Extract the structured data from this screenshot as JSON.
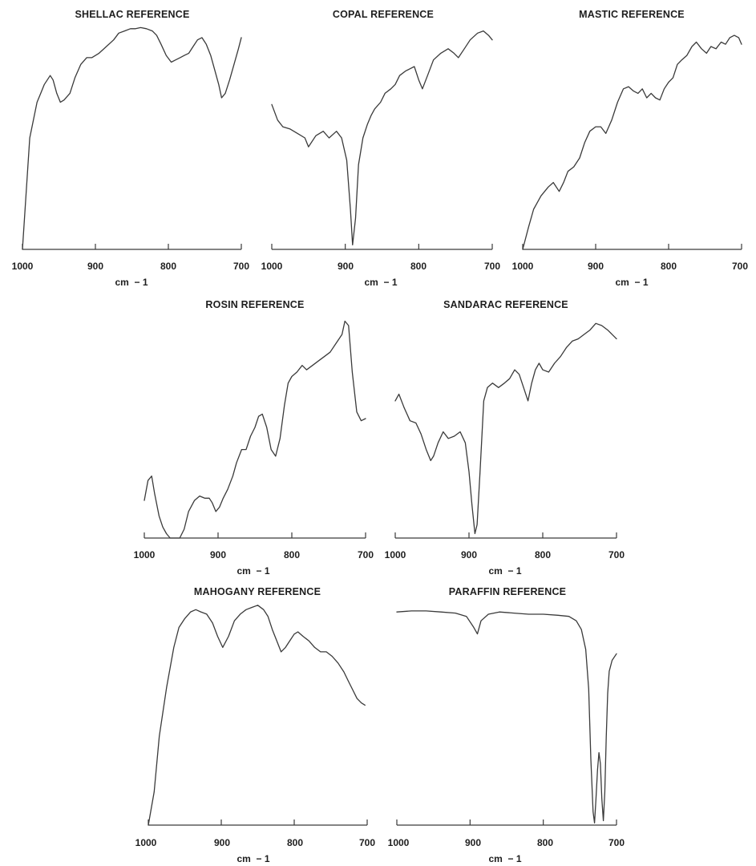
{
  "chart_data": [
    {
      "type": "line",
      "title": "SHELLAC REFERENCE",
      "xlabel": "cm  − 1",
      "ylabel": "",
      "xlim": [
        1000,
        700
      ],
      "ylim": [
        0,
        100
      ],
      "x_ticks": [
        "1000",
        "900",
        "800",
        "700"
      ],
      "series": [
        {
          "x": [
            1000,
            990,
            980,
            975,
            970,
            962,
            958,
            953,
            948,
            943,
            935,
            928,
            920,
            912,
            905,
            895,
            885,
            875,
            868,
            860,
            852,
            845,
            838,
            830,
            822,
            816,
            810,
            803,
            796,
            790,
            784,
            778,
            772,
            766,
            760,
            754,
            748,
            742,
            736,
            731,
            727,
            722,
            716,
            710,
            704,
            700
          ],
          "y": [
            0,
            50,
            66,
            70,
            74,
            78,
            76,
            70,
            66,
            67,
            70,
            77,
            83,
            86,
            86,
            88,
            91,
            94,
            97,
            98,
            99,
            99,
            99.5,
            99,
            98,
            96,
            92,
            87,
            84,
            85,
            86,
            87,
            88,
            91,
            94,
            95,
            92,
            87,
            80,
            74,
            68,
            70,
            76,
            83,
            90,
            95
          ]
        }
      ]
    },
    {
      "type": "line",
      "title": "COPAL REFERENCE",
      "xlabel": "cm  − 1",
      "ylabel": "",
      "xlim": [
        1000,
        700
      ],
      "ylim": [
        0,
        100
      ],
      "x_ticks": [
        "1000",
        "900",
        "800",
        "700"
      ],
      "series": [
        {
          "x": [
            1000,
            992,
            985,
            975,
            965,
            955,
            950,
            940,
            930,
            922,
            912,
            905,
            898,
            893,
            890,
            886,
            882,
            876,
            870,
            865,
            860,
            852,
            846,
            838,
            832,
            826,
            818,
            812,
            806,
            800,
            795,
            788,
            780,
            770,
            760,
            752,
            746,
            738,
            730,
            720,
            712,
            705,
            700
          ],
          "y": [
            65,
            58,
            55,
            54,
            52,
            50,
            46,
            51,
            53,
            50,
            53,
            50,
            40,
            18,
            2,
            14,
            38,
            50,
            56,
            60,
            63,
            66,
            70,
            72,
            74,
            78,
            80,
            81,
            82,
            76,
            72,
            78,
            85,
            88,
            90,
            88,
            86,
            90,
            94,
            97,
            98,
            96,
            94
          ]
        }
      ]
    },
    {
      "type": "line",
      "title": "MASTIC REFERENCE",
      "xlabel": "cm  − 1",
      "ylabel": "",
      "xlim": [
        1000,
        700
      ],
      "ylim": [
        0,
        100
      ],
      "x_ticks": [
        "1000",
        "900",
        "800",
        "700"
      ],
      "series": [
        {
          "x": [
            1000,
            992,
            985,
            975,
            965,
            958,
            950,
            944,
            938,
            930,
            922,
            915,
            908,
            900,
            893,
            886,
            878,
            870,
            862,
            855,
            848,
            842,
            836,
            830,
            824,
            818,
            812,
            806,
            800,
            794,
            788,
            782,
            775,
            768,
            762,
            755,
            748,
            742,
            735,
            728,
            722,
            716,
            710,
            704,
            700
          ],
          "y": [
            0,
            10,
            18,
            24,
            28,
            30,
            26,
            30,
            35,
            37,
            41,
            48,
            53,
            55,
            55,
            52,
            58,
            66,
            72,
            73,
            71,
            70,
            72,
            68,
            70,
            68,
            67,
            72,
            75,
            77,
            83,
            85,
            87,
            91,
            93,
            90,
            88,
            91,
            90,
            93,
            92,
            95,
            96,
            95,
            92
          ]
        }
      ]
    },
    {
      "type": "line",
      "title": "ROSIN REFERENCE",
      "xlabel": "cm  − 1",
      "ylabel": "",
      "xlim": [
        1000,
        700
      ],
      "ylim": [
        0,
        100
      ],
      "x_ticks": [
        "1000",
        "900",
        "800",
        "700"
      ],
      "series": [
        {
          "x": [
            1000,
            995,
            990,
            986,
            980,
            975,
            970,
            965,
            958,
            952,
            946,
            940,
            932,
            925,
            918,
            912,
            908,
            903,
            898,
            893,
            887,
            880,
            875,
            868,
            862,
            856,
            850,
            845,
            840,
            834,
            828,
            822,
            816,
            810,
            805,
            800,
            793,
            786,
            780,
            772,
            764,
            756,
            748,
            740,
            732,
            728,
            723,
            718,
            712,
            706,
            700
          ],
          "y": [
            17,
            26,
            28,
            20,
            10,
            5,
            2,
            0,
            0,
            0,
            4,
            12,
            17,
            19,
            18,
            18,
            16,
            12,
            14,
            18,
            22,
            28,
            34,
            40,
            40,
            46,
            50,
            55,
            56,
            50,
            40,
            37,
            45,
            60,
            70,
            73,
            75,
            78,
            76,
            78,
            80,
            82,
            84,
            88,
            92,
            98,
            96,
            75,
            57,
            53,
            54
          ]
        }
      ]
    },
    {
      "type": "line",
      "title": "SANDARAC REFERENCE",
      "xlabel": "cm  − 1",
      "ylabel": "",
      "xlim": [
        1000,
        700
      ],
      "ylim": [
        0,
        100
      ],
      "x_ticks": [
        "1000",
        "900",
        "800",
        "700"
      ],
      "series": [
        {
          "x": [
            1000,
            995,
            988,
            980,
            972,
            965,
            958,
            952,
            948,
            942,
            935,
            928,
            920,
            912,
            905,
            900,
            896,
            892,
            889,
            885,
            880,
            875,
            868,
            860,
            852,
            845,
            838,
            832,
            826,
            820,
            815,
            810,
            805,
            800,
            792,
            784,
            776,
            768,
            760,
            752,
            744,
            736,
            728,
            720,
            712,
            706,
            700
          ],
          "y": [
            62,
            65,
            59,
            53,
            52,
            47,
            40,
            35,
            37,
            43,
            48,
            45,
            46,
            48,
            43,
            30,
            15,
            2,
            6,
            30,
            62,
            68,
            70,
            68,
            70,
            72,
            76,
            74,
            68,
            62,
            70,
            76,
            79,
            76,
            75,
            79,
            82,
            86,
            89,
            90,
            92,
            94,
            97,
            96,
            94,
            92,
            90
          ]
        }
      ]
    },
    {
      "type": "line",
      "title": "MAHOGANY REFERENCE",
      "xlabel": "cm  − 1",
      "ylabel": "",
      "xlim": [
        1000,
        700
      ],
      "ylim": [
        0,
        100
      ],
      "x_ticks": [
        "1000",
        "900",
        "800",
        "700"
      ],
      "series": [
        {
          "x": [
            1000,
            992,
            985,
            975,
            965,
            958,
            950,
            942,
            935,
            928,
            920,
            912,
            905,
            898,
            890,
            882,
            874,
            866,
            858,
            850,
            842,
            836,
            830,
            824,
            818,
            812,
            806,
            800,
            795,
            788,
            780,
            772,
            764,
            756,
            748,
            740,
            732,
            726,
            720,
            714,
            708,
            703
          ],
          "y": [
            0,
            15,
            40,
            62,
            80,
            89,
            93,
            96,
            97,
            96,
            95,
            91,
            85,
            80,
            85,
            92,
            95,
            97,
            98,
            99,
            97,
            94,
            88,
            83,
            78,
            80,
            83,
            86,
            87,
            85,
            83,
            80,
            78,
            78,
            76,
            73,
            69,
            65,
            61,
            57,
            55,
            54
          ]
        }
      ]
    },
    {
      "type": "line",
      "title": "PARAFFIN REFERENCE",
      "xlabel": "cm  − 1",
      "ylabel": "",
      "xlim": [
        1000,
        700
      ],
      "ylim": [
        0,
        100
      ],
      "x_ticks": [
        "1000",
        "900",
        "800",
        "700"
      ],
      "series": [
        {
          "x": [
            1000,
            980,
            960,
            940,
            920,
            905,
            895,
            890,
            885,
            875,
            860,
            840,
            820,
            800,
            780,
            765,
            755,
            748,
            742,
            738,
            735,
            732,
            730,
            728,
            726,
            724,
            722,
            720,
            718,
            716,
            714,
            712,
            710,
            706,
            700
          ],
          "y": [
            97,
            97.5,
            97.5,
            97,
            96.5,
            95,
            90,
            87,
            93,
            96,
            97,
            96.5,
            96,
            96,
            95.5,
            95,
            93,
            89,
            80,
            62,
            30,
            6,
            1,
            12,
            25,
            33,
            28,
            12,
            2,
            15,
            40,
            60,
            70,
            75,
            78
          ]
        }
      ]
    }
  ]
}
